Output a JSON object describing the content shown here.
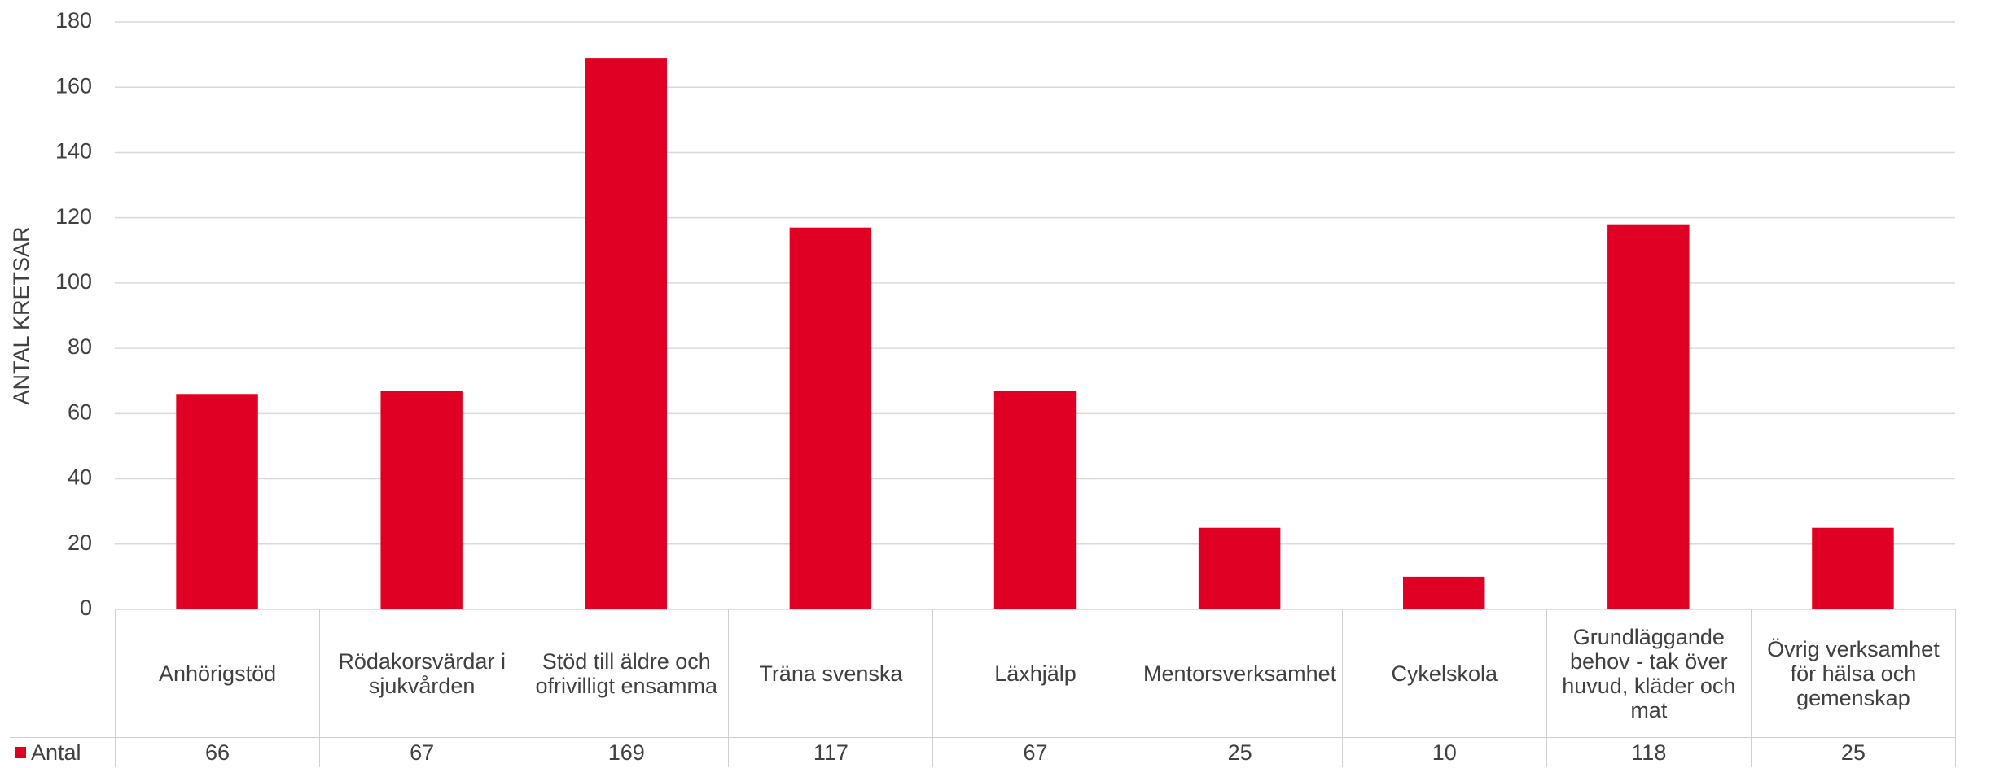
{
  "chart_data": {
    "type": "bar",
    "y_label": "ANTAL KRETSAR",
    "categories": [
      "Anhörigstöd",
      "Rödakorsvärdar i sjukvården",
      "Stöd till äldre och ofrivilligt ensamma",
      "Träna svenska",
      "Läxhjälp",
      "Mentorsverksamhet",
      "Cykelskola",
      "Grundläggande behov - tak över huvud, kläder och mat",
      "Övrig verksamhet för hälsa och gemenskap"
    ],
    "series": [
      {
        "name": "Antal",
        "color": "#e00024",
        "values": [
          66,
          67,
          169,
          117,
          67,
          25,
          10,
          118,
          25
        ]
      }
    ],
    "ylim": [
      0,
      180
    ],
    "yticks": [
      0,
      20,
      40,
      60,
      80,
      100,
      120,
      140,
      160,
      180
    ],
    "grid": true
  }
}
